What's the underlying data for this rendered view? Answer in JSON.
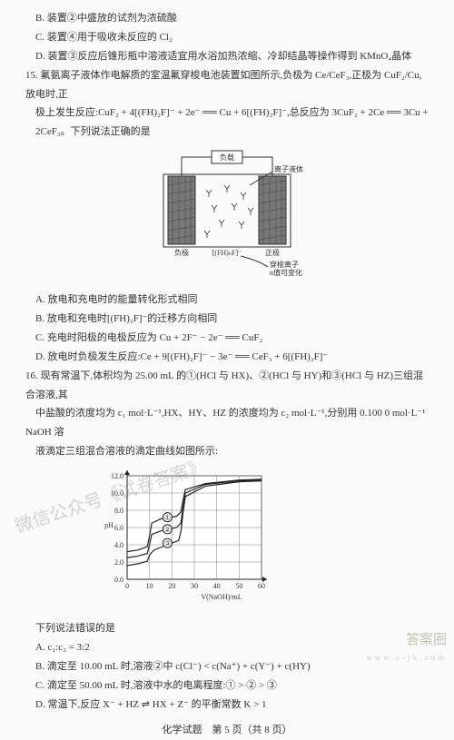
{
  "q14": {
    "B": "B. 装置②中盛放的试剂为浓硫酸",
    "C": "C. 装置④用于吸收未反应的 Cl₂",
    "D": "D. 装置③反应后锥形瓶中溶液适宜用水浴加热浓缩、冷却结晶等操作得到 KMnO₄晶体"
  },
  "q15": {
    "stem1": "15. 氟氨离子液体作电解质的室温氟穿梭电池装置如图所示,负极为 Ce/CeF₃,正极为 CuF₂/Cu,放电时,正",
    "stem2": "极上发生反应:CuF₂ + 4[(FH)₂F]⁻ + 2e⁻ ══ Cu + 6[(FH)₂F]⁻,总反应为 3CuF₂ + 2Ce ══ 3Cu +",
    "stem3": "2CeF₃。下列说法正确的是",
    "diagram": {
      "load": "负载",
      "ionliquid": "离子液体",
      "neg": "负极",
      "pos": "正极",
      "mid": "[(FH)ₙF]⁻",
      "shuttle": "穿梭离子",
      "nvar": "n值可变化",
      "electrode_fill": "#6b6b6b",
      "bg": "#ffffff"
    },
    "A": "A. 放电和充电时的能量转化形式相同",
    "B": "B. 放电和充电时[(FH)₂F]⁻的迁移方向相同",
    "C": "C. 充电时阳极的电极反应为 Cu + 2F⁻ − 2e⁻ ══ CuF₂",
    "D": "D. 放电时负极发生反应:Ce + 9[(FH)₂F]⁻ − 3e⁻ ══ CeF₃ + 6[(FH)₃F]⁻"
  },
  "q16": {
    "stem1": "16. 现有常温下,体积均为 25.00 mL 的①(HCl 与 HX)、②(HCl 与 HY)和③(HCl 与 HZ)三组混合溶液,其",
    "stem2": "中盐酸的浓度均为 c₁ mol·L⁻¹,HX、HY、HZ 的浓度均为 c₂ mol·L⁻¹,分别用 0.100 0 mol·L⁻¹ NaOH 溶",
    "stem3": "液滴定三组混合溶液的滴定曲线如图所示:",
    "chart": {
      "xlabel": "V(NaOH)/mL",
      "ylabel": "pH",
      "xlim": [
        0,
        60
      ],
      "xtick": [
        0,
        10,
        20,
        30,
        40,
        50,
        60
      ],
      "ylim": [
        0,
        12
      ],
      "ytick": [
        0,
        2.0,
        4.0,
        6.0,
        8.0,
        10.0,
        12.0
      ],
      "series_labels": [
        "①",
        "②",
        "③"
      ],
      "line_color": "#222",
      "bg_color": "#fff",
      "grid_color": "#666",
      "curves": {
        "1": [
          [
            0,
            3.2
          ],
          [
            5,
            3.4
          ],
          [
            9,
            3.8
          ],
          [
            10,
            5.0
          ],
          [
            11,
            6.5
          ],
          [
            15,
            7.0
          ],
          [
            22,
            7.3
          ],
          [
            24,
            7.8
          ],
          [
            25,
            9.2
          ],
          [
            26,
            10.4
          ],
          [
            35,
            11.1
          ],
          [
            50,
            11.5
          ],
          [
            60,
            11.6
          ]
        ],
        "2": [
          [
            0,
            2.5
          ],
          [
            5,
            2.7
          ],
          [
            9,
            3.0
          ],
          [
            10,
            4.0
          ],
          [
            11,
            5.2
          ],
          [
            15,
            5.6
          ],
          [
            22,
            6.0
          ],
          [
            24,
            6.5
          ],
          [
            25,
            8.4
          ],
          [
            26,
            10.0
          ],
          [
            35,
            11.0
          ],
          [
            50,
            11.4
          ],
          [
            60,
            11.5
          ]
        ],
        "3": [
          [
            0,
            1.6
          ],
          [
            5,
            1.8
          ],
          [
            9,
            2.1
          ],
          [
            10,
            2.8
          ],
          [
            12,
            3.4
          ],
          [
            18,
            4.0
          ],
          [
            23,
            4.5
          ],
          [
            24,
            5.5
          ],
          [
            25,
            7.8
          ],
          [
            26,
            9.6
          ],
          [
            35,
            10.8
          ],
          [
            50,
            11.3
          ],
          [
            60,
            11.4
          ]
        ]
      }
    },
    "tail": "下列说法错误的是",
    "A": "A. c₁:c₂ = 3:2",
    "B": "B. 滴定至 10.00 mL 时,溶液②中 c(Cl⁻) < c(Na⁺) + c(Y⁻) + c(HY)",
    "C": "C. 滴定至 50.00 mL 时,溶液中水的电离程度:① > ② > ③",
    "D": "D. 常温下,反应 X⁻ + HZ ⇌ HX + Z⁻ 的平衡常数 K > 1"
  },
  "footer": "化学试题　第 5 页（共 8 页）",
  "watermark": "微信公众号《试卷答案》",
  "wm_br1": "答案圈",
  "wm_br2": "www.c-jk.com"
}
